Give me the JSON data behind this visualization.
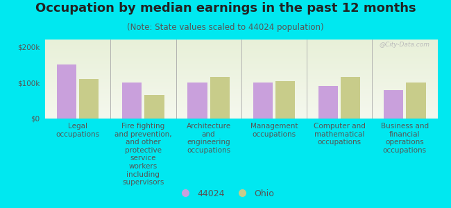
{
  "title": "Occupation by median earnings in the past 12 months",
  "subtitle": "(Note: State values scaled to 44024 population)",
  "categories": [
    "Legal\noccupations",
    "Fire fighting\nand prevention,\nand other\nprotective\nservice\nworkers\nincluding\nsupervisors",
    "Architecture\nand\nengineering\noccupations",
    "Management\noccupations",
    "Computer and\nmathematical\noccupations",
    "Business and\nfinancial\noperations\noccupations"
  ],
  "values_44024": [
    150000,
    100000,
    100000,
    100000,
    90000,
    80000
  ],
  "values_ohio": [
    110000,
    65000,
    115000,
    105000,
    115000,
    100000
  ],
  "color_44024": "#c9a0dc",
  "color_ohio": "#c8cc8a",
  "background_color": "#00e8f0",
  "plot_bg_gradient_top": "#e8f0d8",
  "plot_bg_gradient_bottom": "#f5f8ee",
  "ylabel_ticks": [
    "$0",
    "$100k",
    "$200k"
  ],
  "yticks": [
    0,
    100000,
    200000
  ],
  "ylim": [
    0,
    220000
  ],
  "legend_44024": "44024",
  "legend_ohio": "Ohio",
  "watermark": "@City-Data.com",
  "title_fontsize": 13,
  "subtitle_fontsize": 8.5,
  "tick_fontsize": 7.5,
  "label_fontsize": 7.5
}
